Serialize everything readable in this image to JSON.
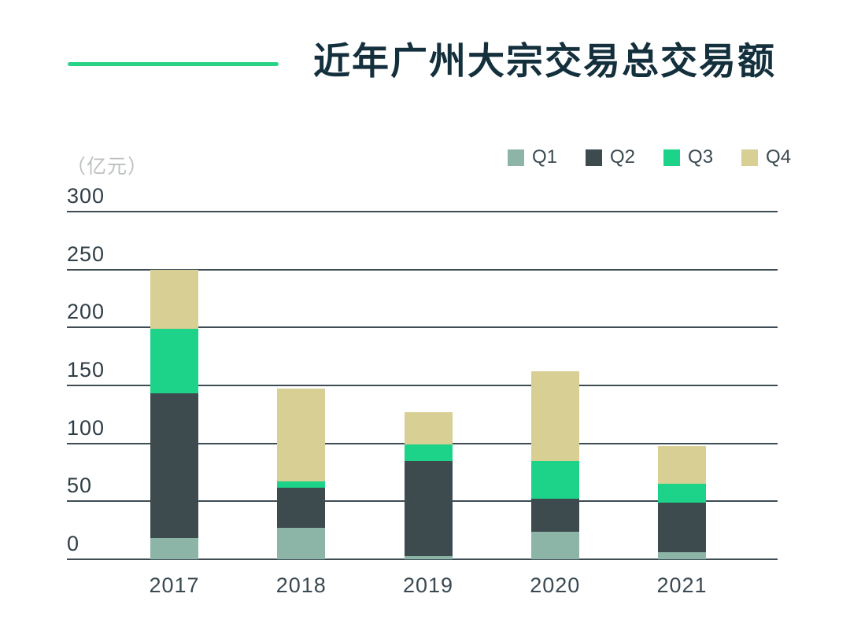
{
  "header": {
    "title": "近年广州大宗交易总交易额"
  },
  "colors": {
    "accent_line": "#29d287",
    "title_text": "#14303d",
    "gridline": "#3e4c54",
    "tick_text": "#2f3e46",
    "x_label_text": "#3a4951",
    "unit_text": "#bdc0c2",
    "background": "#ffffff"
  },
  "chart_data": {
    "type": "bar",
    "stacked": true,
    "title": "近年广州大宗交易总交易额",
    "unit_label": "（亿元）",
    "xlabel": "",
    "ylabel": "亿元",
    "ylim": [
      0,
      300
    ],
    "y_ticks": [
      300,
      250,
      200,
      150,
      100,
      50,
      0
    ],
    "grid": true,
    "legend_position": "top-right",
    "categories": [
      "2017",
      "2018",
      "2019",
      "2020",
      "2021"
    ],
    "series": [
      {
        "name": "Q1",
        "color": "#8cb5a7",
        "values": [
          18,
          27,
          3,
          24,
          6
        ]
      },
      {
        "name": "Q2",
        "color": "#3d4b4f",
        "values": [
          125,
          35,
          82,
          28,
          43
        ]
      },
      {
        "name": "Q3",
        "color": "#1dd389",
        "values": [
          56,
          5,
          14,
          33,
          16
        ]
      },
      {
        "name": "Q4",
        "color": "#d7cf94",
        "values": [
          51,
          80,
          28,
          77,
          33
        ]
      }
    ]
  }
}
